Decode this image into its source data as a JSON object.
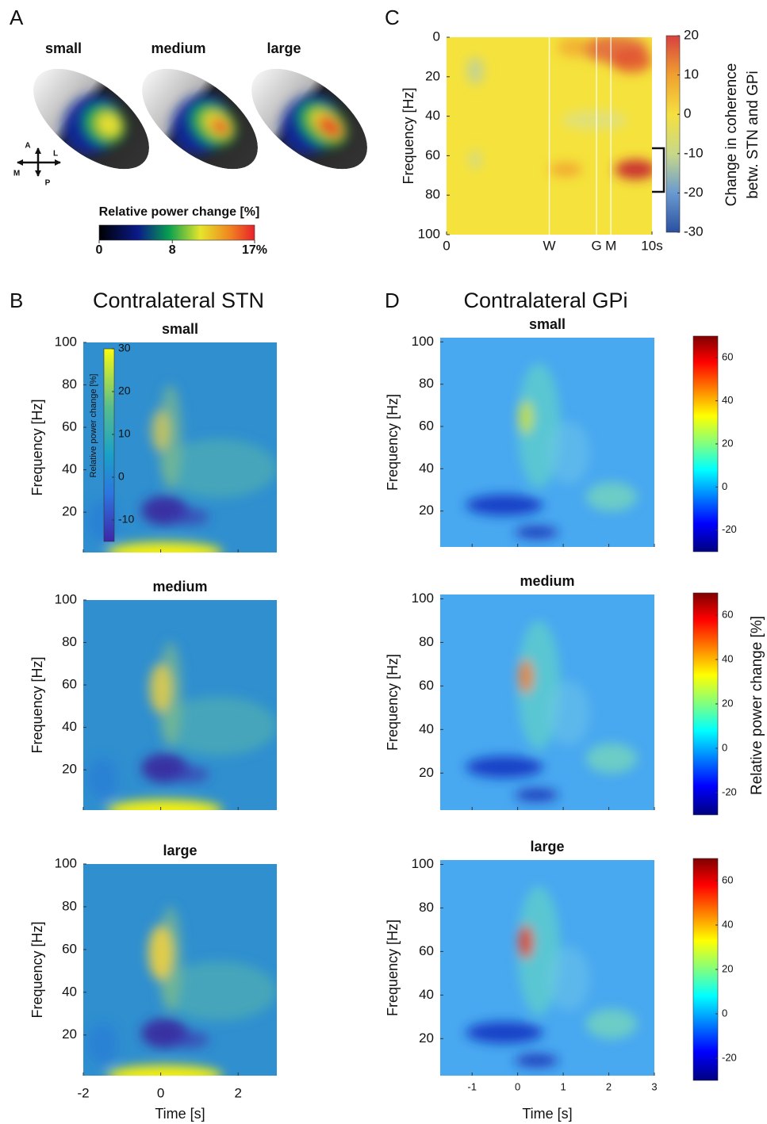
{
  "chart_data": [
    {
      "type": "surface",
      "panel_label": "A",
      "titles": [
        "small",
        "medium",
        "large"
      ],
      "directions": [
        "A",
        "L",
        "M",
        "P"
      ],
      "colorbar": {
        "label": "Relative power change [%]",
        "clim": [
          0,
          17
        ],
        "ticks": [
          0,
          8,
          {
            "value": 17,
            "label": "17%"
          }
        ]
      }
    },
    {
      "type": "heatmap",
      "panel_label": "C",
      "ylabel": "Frequency [Hz]",
      "xlim": [
        0,
        10
      ],
      "xticks": [
        0,
        {
          "value": 5,
          "label": "W"
        },
        {
          "value": 7.3,
          "label": "G"
        },
        {
          "value": 8,
          "label": "M"
        },
        {
          "value": 10,
          "label": "10s"
        }
      ],
      "ylim": [
        0,
        100
      ],
      "yticks": [
        0,
        20,
        40,
        60,
        80,
        100
      ],
      "y_inverted": true,
      "colorbar": {
        "label": [
          "Change in coherence",
          "betw. STN and GPi"
        ],
        "clim": [
          -30,
          20
        ],
        "ticks": [
          20,
          10,
          0,
          -10,
          -20,
          -30
        ]
      }
    },
    {
      "type": "heatmap",
      "panel_label": "B",
      "title": "Contralateral STN",
      "subplots": [
        "small",
        "medium",
        "large"
      ],
      "xlabel": "Time [s]",
      "ylabel": "Frequency [Hz]",
      "xlim": [
        -2,
        3
      ],
      "xticks": [
        -2,
        0,
        2
      ],
      "ylim": [
        1,
        100
      ],
      "yticks": [
        20,
        40,
        60,
        80,
        100
      ],
      "colorbar": {
        "label": "Relative power change [%]",
        "clim": [
          -15,
          30
        ],
        "ticks": [
          30,
          20,
          10,
          0,
          -10
        ]
      }
    },
    {
      "type": "heatmap",
      "panel_label": "D",
      "title": "Contralateral GPi",
      "subplots": [
        "small",
        "medium",
        "large"
      ],
      "xlabel": "Time [s]",
      "ylabel": "Frequency [Hz]",
      "xlim": [
        -1.7,
        3
      ],
      "xticks": [
        -1,
        0,
        1,
        2,
        3
      ],
      "ylim": [
        3,
        102
      ],
      "yticks": [
        20,
        40,
        60,
        80,
        100
      ],
      "colorbar": {
        "label": "Relative power change [%]",
        "clim": [
          -30,
          70
        ],
        "ticks": [
          -20,
          0,
          20,
          40,
          60
        ]
      }
    }
  ]
}
